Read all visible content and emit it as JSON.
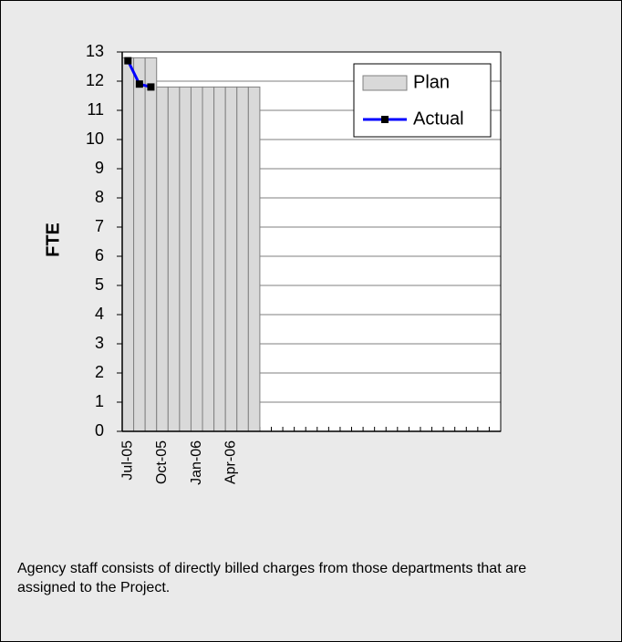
{
  "chart_data": {
    "type": "bar",
    "categories": [
      "Jul-05",
      null,
      null,
      "Oct-05",
      null,
      null,
      "Jan-06",
      null,
      null,
      "Apr-06",
      null,
      null,
      null,
      null,
      null,
      null,
      null,
      null,
      null,
      null,
      null,
      null,
      null,
      null,
      null,
      null,
      null,
      null,
      null,
      null,
      null,
      null,
      null
    ],
    "series": [
      {
        "name": "Plan",
        "type": "bar",
        "color": "#d9d9d9",
        "values": [
          12.8,
          12.8,
          12.8,
          11.8,
          11.8,
          11.8,
          11.8,
          11.8,
          11.8,
          11.8,
          11.8,
          11.8,
          null,
          null,
          null,
          null,
          null,
          null,
          null,
          null,
          null,
          null,
          null,
          null,
          null,
          null,
          null,
          null,
          null,
          null,
          null,
          null,
          null
        ]
      },
      {
        "name": "Actual",
        "type": "line",
        "color": "#0000ff",
        "values": [
          12.7,
          11.9,
          11.8,
          null,
          null,
          null,
          null,
          null,
          null,
          null,
          null,
          null,
          null,
          null,
          null,
          null,
          null,
          null,
          null,
          null,
          null,
          null,
          null,
          null,
          null,
          null,
          null,
          null,
          null,
          null,
          null,
          null,
          null
        ]
      }
    ],
    "y_label": "FTE",
    "ylim": [
      0,
      13
    ],
    "yticks": [
      0,
      1,
      2,
      3,
      4,
      5,
      6,
      7,
      8,
      9,
      10,
      11,
      12,
      13
    ],
    "grid": true,
    "legend": "upper right",
    "annotation": "Agency staff consists of directly billed charges from those departments that are assigned to the Project."
  }
}
